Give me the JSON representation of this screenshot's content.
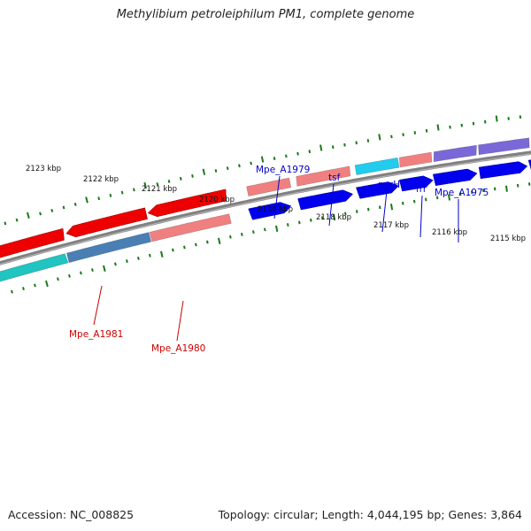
{
  "title": "Methylibium petroleiphilum PM1, complete genome",
  "footer": {
    "accession": "Accession: NC_008825",
    "summary": "Topology: circular; Length: 4,044,195 bp; Genes: 3,864"
  },
  "scale_labels": [
    "2123 kbp",
    "2122 kbp",
    "2121 kbp",
    "2120 kbp",
    "2119 kbp",
    "2118 kbp",
    "2117 kbp",
    "2116 kbp",
    "2115 kbp"
  ],
  "gene_labels": {
    "forward": [
      "Mpe_A1979",
      "tsf",
      "pyrH",
      "frr",
      "Mpe_A1975"
    ],
    "reverse": [
      "Mpe_A1981",
      "Mpe_A1980"
    ]
  },
  "colors": {
    "forward_label": "#0000cc",
    "reverse_label": "#cc0000",
    "backbone": "#808080",
    "tick": "#1a7a1a",
    "cds_forward": "#0000ee",
    "cds_reverse": "#ee0000",
    "feature_salmon": "#f08080",
    "feature_cyan": "#22ccee",
    "feature_teal": "#20c4c0",
    "feature_steelblue": "#4a7fb5",
    "feature_slateblue": "#7b68d8"
  }
}
